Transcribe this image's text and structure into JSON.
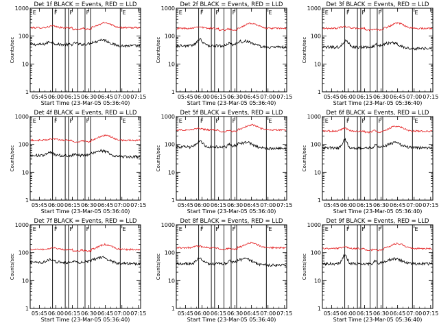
{
  "chart_data": [
    {
      "type": "line",
      "title": "Det 1f BLACK = Events, RED = LLD",
      "xlabel": "Start Time (23-Mar-05 05:36:40)",
      "ylabel": "Counts/sec",
      "yscale": "log",
      "ylim": [
        1,
        1000
      ],
      "x_ticks": [
        "05:45",
        "06:00",
        "06:15",
        "06:30",
        "06:45",
        "07:00",
        "07:15"
      ],
      "y_ticks": [
        "1",
        "10",
        "100",
        "1000"
      ],
      "flags": [
        "E",
        "F",
        "F",
        "F",
        "E"
      ],
      "series": [
        {
          "name": "Events",
          "color": "#000000",
          "shape": "events_a",
          "base": 50
        },
        {
          "name": "LLD",
          "color": "#e31a1c",
          "shape": "lld_a",
          "base": 200
        }
      ]
    },
    {
      "type": "line",
      "title": "Det 2f BLACK = Events, RED = LLD",
      "xlabel": "Start Time (23-Mar-05 05:36:40)",
      "ylabel": "Counts/sec",
      "yscale": "log",
      "ylim": [
        1,
        1000
      ],
      "x_ticks": [
        "05:45",
        "06:00",
        "06:15",
        "06:30",
        "06:45",
        "07:00",
        "07:15"
      ],
      "y_ticks": [
        "1",
        "10",
        "100",
        "1000"
      ],
      "flags": [
        "E",
        "F",
        "F",
        "F",
        "E"
      ],
      "series": [
        {
          "name": "Events",
          "color": "#000000",
          "shape": "events_b",
          "base": 45
        },
        {
          "name": "LLD",
          "color": "#e31a1c",
          "shape": "lld_a",
          "base": 190
        }
      ]
    },
    {
      "type": "line",
      "title": "Det 3f BLACK = Events, RED = LLD",
      "xlabel": "Start Time (23-Mar-05 05:36:40)",
      "ylabel": "Counts/sec",
      "yscale": "log",
      "ylim": [
        1,
        1000
      ],
      "x_ticks": [
        "05:45",
        "06:00",
        "06:15",
        "06:30",
        "06:45",
        "07:00",
        "07:15"
      ],
      "y_ticks": [
        "1",
        "10",
        "100",
        "1000"
      ],
      "flags": [
        "E",
        "F",
        "F",
        "F",
        "E"
      ],
      "series": [
        {
          "name": "Events",
          "color": "#000000",
          "shape": "events_b",
          "base": 40
        },
        {
          "name": "LLD",
          "color": "#e31a1c",
          "shape": "lld_a",
          "base": 190
        }
      ]
    },
    {
      "type": "line",
      "title": "Det 4f BLACK = Events, RED = LLD",
      "xlabel": "Start Time (23-Mar-05 05:36:40)",
      "ylabel": "Counts/sec",
      "yscale": "log",
      "ylim": [
        1,
        1000
      ],
      "x_ticks": [
        "05:45",
        "06:00",
        "06:15",
        "06:30",
        "06:45",
        "07:00",
        "07:15"
      ],
      "y_ticks": [
        "1",
        "10",
        "100",
        "1000"
      ],
      "flags": [
        "E",
        "F",
        "F",
        "F",
        "E"
      ],
      "series": [
        {
          "name": "Events",
          "color": "#000000",
          "shape": "events_a",
          "base": 40
        },
        {
          "name": "LLD",
          "color": "#e31a1c",
          "shape": "lld_a",
          "base": 140
        }
      ]
    },
    {
      "type": "line",
      "title": "Det 5f BLACK = Events, RED = LLD",
      "xlabel": "Start Time (23-Mar-05 05:36:40)",
      "ylabel": "Counts/sec",
      "yscale": "log",
      "ylim": [
        1,
        1000
      ],
      "x_ticks": [
        "05:45",
        "06:00",
        "06:15",
        "06:30",
        "06:45",
        "07:00",
        "07:15"
      ],
      "y_ticks": [
        "1",
        "10",
        "100",
        "1000"
      ],
      "flags": [
        "E",
        "F",
        "F",
        "F",
        "E"
      ],
      "series": [
        {
          "name": "Events",
          "color": "#000000",
          "shape": "events_b",
          "base": 80
        },
        {
          "name": "LLD",
          "color": "#e31a1c",
          "shape": "lld_a",
          "base": 330
        }
      ]
    },
    {
      "type": "line",
      "title": "Det 6f BLACK = Events, RED = LLD",
      "xlabel": "Start Time (23-Mar-05 05:36:40)",
      "ylabel": "Counts/sec",
      "yscale": "log",
      "ylim": [
        1,
        1000
      ],
      "x_ticks": [
        "05:45",
        "06:00",
        "06:15",
        "06:30",
        "06:45",
        "07:00",
        "07:15"
      ],
      "y_ticks": [
        "1",
        "10",
        "100",
        "1000"
      ],
      "flags": [
        "E",
        "F",
        "F",
        "F",
        "E"
      ],
      "series": [
        {
          "name": "Events",
          "color": "#000000",
          "shape": "events_c",
          "base": 75
        },
        {
          "name": "LLD",
          "color": "#e31a1c",
          "shape": "lld_b",
          "base": 300
        }
      ]
    },
    {
      "type": "line",
      "title": "Det 7f BLACK = Events, RED = LLD",
      "xlabel": "Start Time (23-Mar-05 05:36:40)",
      "ylabel": "Counts/sec",
      "yscale": "log",
      "ylim": [
        1,
        1000
      ],
      "x_ticks": [
        "05:45",
        "06:00",
        "06:15",
        "06:30",
        "06:45",
        "07:00",
        "07:15"
      ],
      "y_ticks": [
        "1",
        "10",
        "100",
        "1000"
      ],
      "flags": [
        "E",
        "F",
        "F",
        "F",
        "E"
      ],
      "series": [
        {
          "name": "Events",
          "color": "#000000",
          "shape": "events_a",
          "base": 45
        },
        {
          "name": "LLD",
          "color": "#e31a1c",
          "shape": "lld_a",
          "base": 130
        }
      ]
    },
    {
      "type": "line",
      "title": "Det 8f BLACK = Events, RED = LLD",
      "xlabel": "Start Time (23-Mar-05 05:36:40)",
      "ylabel": "Counts/sec",
      "yscale": "log",
      "ylim": [
        1,
        1000
      ],
      "x_ticks": [
        "05:45",
        "06:00",
        "06:15",
        "06:30",
        "06:45",
        "07:00",
        "07:15"
      ],
      "y_ticks": [
        "1",
        "10",
        "100",
        "1000"
      ],
      "flags": [
        "E",
        "F",
        "F",
        "F",
        "E"
      ],
      "series": [
        {
          "name": "Events",
          "color": "#000000",
          "shape": "events_b",
          "base": 40
        },
        {
          "name": "LLD",
          "color": "#e31a1c",
          "shape": "lld_a",
          "base": 150
        }
      ]
    },
    {
      "type": "line",
      "title": "Det 9f BLACK = Events, RED = LLD",
      "xlabel": "Start Time (23-Mar-05 05:36:40)",
      "ylabel": "Counts/sec",
      "yscale": "log",
      "ylim": [
        1,
        1000
      ],
      "x_ticks": [
        "05:45",
        "06:00",
        "06:15",
        "06:30",
        "06:45",
        "07:00",
        "07:15"
      ],
      "y_ticks": [
        "1",
        "10",
        "100",
        "1000"
      ],
      "flags": [
        "E",
        "F",
        "F",
        "F",
        "E"
      ],
      "series": [
        {
          "name": "Events",
          "color": "#000000",
          "shape": "events_c",
          "base": 40
        },
        {
          "name": "LLD",
          "color": "#e31a1c",
          "shape": "lld_a",
          "base": 140
        }
      ]
    }
  ]
}
